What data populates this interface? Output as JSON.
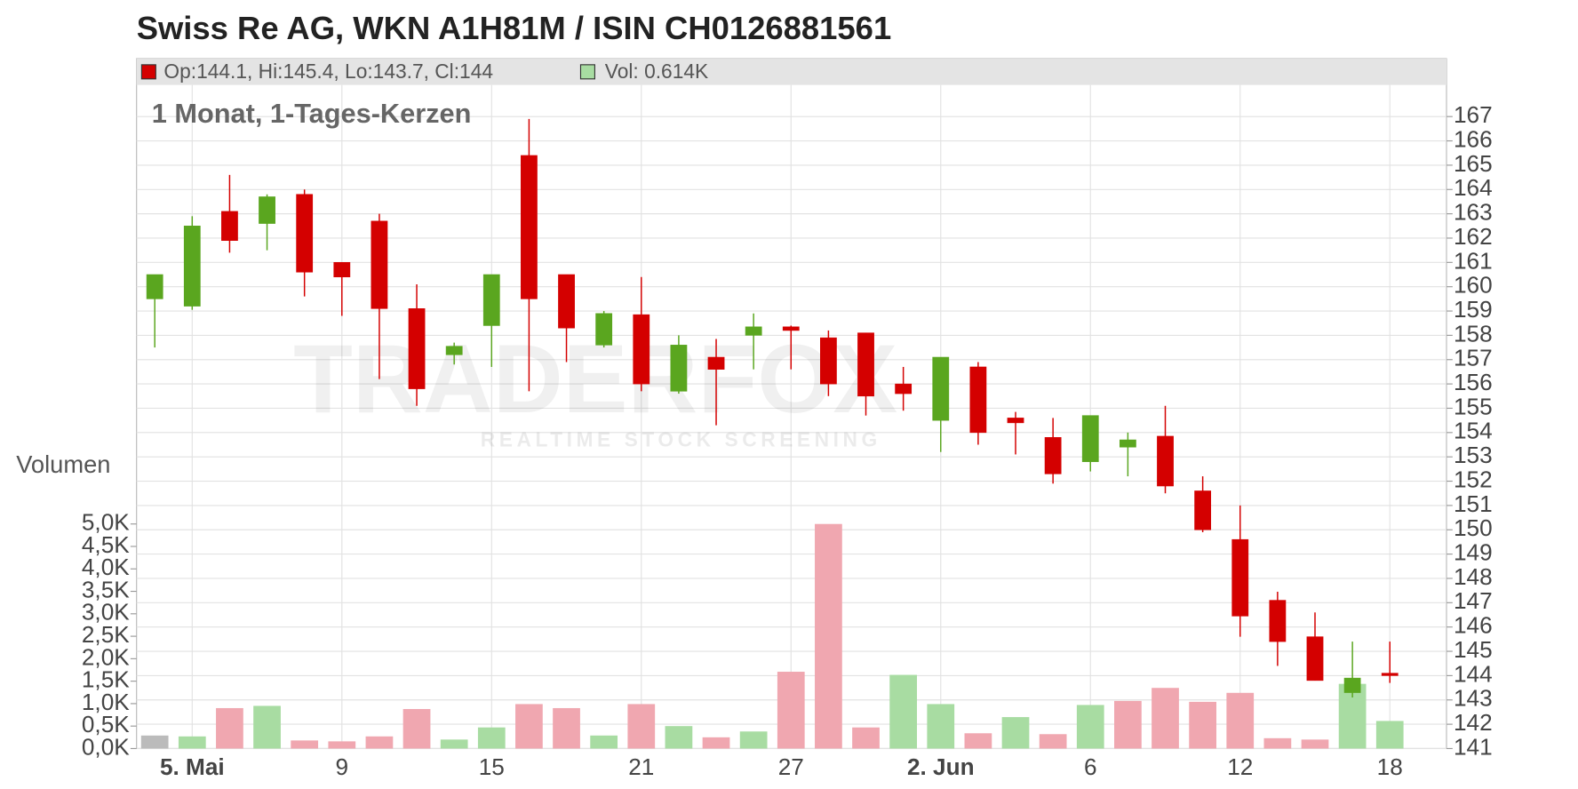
{
  "chart_data": {
    "type": "candlestick",
    "title": "Swiss Re AG, WKN A1H81M / ISIN CH0126881561",
    "subtitle": "1 Monat, 1-Tages-Kerzen",
    "ohlc_label": "Op:144.1, Hi:145.4, Lo:143.7, Cl:144",
    "volume_label": "Vol: 0.614K",
    "volume_axis_label": "Volumen",
    "watermark": "TRADERFOX",
    "watermark_sub": "REALTIME STOCK SCREENING",
    "categories": [
      null,
      "5. Mai",
      null,
      null,
      null,
      "9",
      null,
      null,
      null,
      "15",
      null,
      null,
      null,
      "21",
      null,
      null,
      null,
      "27",
      null,
      null,
      null,
      "2. Jun",
      null,
      null,
      null,
      "6",
      null,
      null,
      null,
      "12",
      null,
      null,
      null,
      "18"
    ],
    "open": [
      159.5,
      159.2,
      163.1,
      162.6,
      163.8,
      161.0,
      162.7,
      159.1,
      157.2,
      158.4,
      165.4,
      160.5,
      157.6,
      158.85,
      155.7,
      157.1,
      158.0,
      158.35,
      157.9,
      158.1,
      156.0,
      154.5,
      156.7,
      154.6,
      153.8,
      152.8,
      153.4,
      153.85,
      151.6,
      149.6,
      147.1,
      145.6,
      143.3,
      144.1
    ],
    "high": [
      160.5,
      162.9,
      164.6,
      163.8,
      164.0,
      161.0,
      163.0,
      160.1,
      157.7,
      160.5,
      166.9,
      160.5,
      159.0,
      160.4,
      158.0,
      157.85,
      158.9,
      158.4,
      158.2,
      158.1,
      156.7,
      157.1,
      156.9,
      154.85,
      154.6,
      154.7,
      154.0,
      155.1,
      152.2,
      151.0,
      147.45,
      146.6,
      145.4,
      145.4
    ],
    "low": [
      157.5,
      159.05,
      161.4,
      161.5,
      159.6,
      158.8,
      156.2,
      155.1,
      156.8,
      156.7,
      155.7,
      156.9,
      157.5,
      155.7,
      155.6,
      154.3,
      156.6,
      156.6,
      155.5,
      154.7,
      154.9,
      153.2,
      153.5,
      153.1,
      151.9,
      152.4,
      152.2,
      151.5,
      149.9,
      145.6,
      144.4,
      143.8,
      143.1,
      143.7
    ],
    "close": [
      160.5,
      162.5,
      161.9,
      163.7,
      160.6,
      160.4,
      159.1,
      155.8,
      157.55,
      160.5,
      159.5,
      158.3,
      158.9,
      156.0,
      157.6,
      156.6,
      158.35,
      158.2,
      156.0,
      155.5,
      155.6,
      157.1,
      154.0,
      154.4,
      152.3,
      154.7,
      153.7,
      151.8,
      150.0,
      146.45,
      145.4,
      143.8,
      143.9,
      144
    ],
    "volume": [
      0.29,
      0.27,
      0.9,
      0.95,
      0.18,
      0.16,
      0.27,
      0.88,
      0.2,
      0.47,
      0.99,
      0.9,
      0.29,
      0.99,
      0.5,
      0.25,
      0.38,
      1.71,
      5.0,
      0.47,
      1.64,
      0.99,
      0.34,
      0.7,
      0.32,
      0.97,
      1.06,
      1.35,
      1.04,
      1.24,
      0.23,
      0.2,
      1.44,
      0.614
    ],
    "up_color": "#5aa61f",
    "down_color": "#d40000",
    "volume_up_color": "#a8dca2",
    "volume_down_color": "#f0a7b0",
    "volume_first_color": "#bbbbbb",
    "ylim": [
      141,
      168.3
    ],
    "yticks": [
      141,
      142,
      143,
      144,
      145,
      146,
      147,
      148,
      149,
      150,
      151,
      152,
      153,
      154,
      155,
      156,
      157,
      158,
      159,
      160,
      161,
      162,
      163,
      164,
      165,
      166,
      167
    ],
    "volume_ylim": [
      0,
      5
    ],
    "volume_ticks": [
      {
        "value": 0,
        "label": "0,0K"
      },
      {
        "value": 0.5,
        "label": "0,5K"
      },
      {
        "value": 1,
        "label": "1,0K"
      },
      {
        "value": 1.5,
        "label": "1,5K"
      },
      {
        "value": 2,
        "label": "2,0K"
      },
      {
        "value": 2.5,
        "label": "2,5K"
      },
      {
        "value": 3,
        "label": "3,0K"
      },
      {
        "value": 3.5,
        "label": "3,5K"
      },
      {
        "value": 4,
        "label": "4,0K"
      },
      {
        "value": 4.5,
        "label": "4,5K"
      },
      {
        "value": 5,
        "label": "5,0K"
      }
    ],
    "grid": true
  }
}
